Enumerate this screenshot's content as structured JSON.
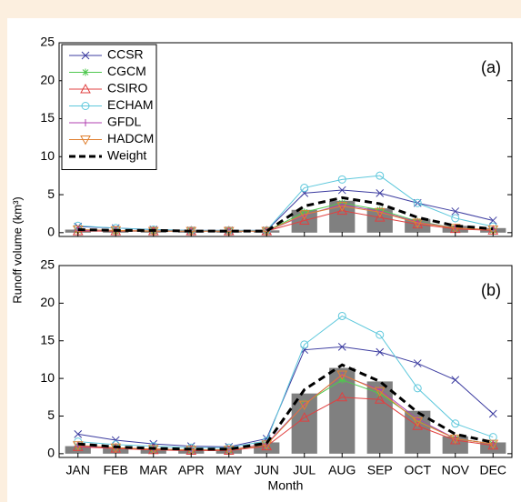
{
  "chart_data": [
    {
      "type": "bar-line",
      "panel_label": "(a)",
      "ylabel": "Runoff volume (km³)",
      "ylim": [
        -0.5,
        25
      ],
      "yticks": [
        0,
        5,
        10,
        15,
        20,
        25
      ],
      "bar_color": "#808080",
      "bars": [
        0.4,
        0.3,
        0.3,
        0.3,
        0.3,
        0.3,
        3.0,
        4.2,
        3.2,
        1.8,
        0.9,
        0.6
      ],
      "legend": "upper left",
      "series": [
        {
          "name": "CCSR",
          "color": "#3c3ca0",
          "marker": "x",
          "linestyle": "solid",
          "values": [
            0.8,
            0.6,
            0.4,
            0.3,
            0.3,
            0.3,
            5.2,
            5.6,
            5.2,
            3.9,
            2.8,
            1.6
          ]
        },
        {
          "name": "CGCM",
          "color": "#4fc84f",
          "marker": "*",
          "linestyle": "solid",
          "values": [
            0.3,
            0.2,
            0.2,
            0.2,
            0.2,
            0.2,
            2.7,
            3.9,
            3.0,
            1.5,
            0.6,
            0.3
          ]
        },
        {
          "name": "CSIRO",
          "color": "#e04040",
          "marker": "^",
          "linestyle": "solid",
          "values": [
            0.2,
            0.2,
            0.2,
            0.2,
            0.2,
            0.2,
            1.6,
            2.9,
            2.0,
            1.1,
            0.5,
            0.3
          ]
        },
        {
          "name": "ECHAM",
          "color": "#5ec8dc",
          "marker": "o",
          "linestyle": "solid",
          "values": [
            0.9,
            0.6,
            0.4,
            0.3,
            0.3,
            0.3,
            5.9,
            7.0,
            7.5,
            3.9,
            1.9,
            0.8
          ]
        },
        {
          "name": "GFDL",
          "color": "#b040b0",
          "marker": "+",
          "linestyle": "solid",
          "values": [
            0.3,
            0.3,
            0.2,
            0.2,
            0.2,
            0.2,
            2.3,
            3.7,
            2.8,
            1.4,
            0.6,
            0.4
          ]
        },
        {
          "name": "HADCM",
          "color": "#e08030",
          "marker": "v",
          "linestyle": "solid",
          "values": [
            0.4,
            0.3,
            0.2,
            0.2,
            0.2,
            0.2,
            2.4,
            3.5,
            2.7,
            1.3,
            0.6,
            0.4
          ]
        },
        {
          "name": "Weight",
          "color": "#000000",
          "marker": "none",
          "linestyle": "dashed",
          "values": [
            0.4,
            0.3,
            0.3,
            0.2,
            0.2,
            0.2,
            3.5,
            4.6,
            3.8,
            2.0,
            0.9,
            0.5
          ]
        }
      ]
    },
    {
      "type": "bar-line",
      "panel_label": "(b)",
      "xlabel": "Month",
      "categories": [
        "JAN",
        "FEB",
        "MAR",
        "APR",
        "MAY",
        "JUN",
        "JUL",
        "AUG",
        "SEP",
        "OCT",
        "NOV",
        "DEC"
      ],
      "ylim": [
        -0.5,
        25
      ],
      "yticks": [
        0,
        5,
        10,
        15,
        20,
        25
      ],
      "bar_color": "#808080",
      "bars": [
        1.0,
        0.8,
        0.7,
        0.6,
        0.6,
        1.5,
        8.0,
        11.4,
        9.6,
        5.7,
        2.3,
        1.5
      ],
      "legend": false,
      "series": [
        {
          "color": "#3c3ca0",
          "marker": "x",
          "linestyle": "solid",
          "values": [
            2.6,
            1.8,
            1.3,
            1.0,
            0.9,
            2.0,
            13.8,
            14.2,
            13.5,
            12.0,
            9.8,
            5.3
          ]
        },
        {
          "color": "#4fc84f",
          "marker": "*",
          "linestyle": "solid",
          "values": [
            1.0,
            0.8,
            0.6,
            0.5,
            0.5,
            1.2,
            6.7,
            9.8,
            8.0,
            4.5,
            2.0,
            1.3
          ]
        },
        {
          "color": "#e04040",
          "marker": "^",
          "linestyle": "solid",
          "values": [
            0.9,
            0.7,
            0.5,
            0.4,
            0.4,
            1.0,
            4.8,
            7.5,
            7.2,
            3.7,
            1.8,
            1.1
          ]
        },
        {
          "color": "#5ec8dc",
          "marker": "o",
          "linestyle": "solid",
          "values": [
            1.6,
            1.2,
            1.0,
            0.8,
            0.8,
            1.7,
            14.5,
            18.3,
            15.8,
            8.7,
            4.0,
            2.2
          ]
        },
        {
          "color": "#b040b0",
          "marker": "+",
          "linestyle": "solid",
          "values": [
            1.0,
            0.8,
            0.6,
            0.5,
            0.5,
            1.3,
            6.6,
            10.4,
            8.5,
            4.6,
            2.0,
            1.3
          ]
        },
        {
          "color": "#e08030",
          "marker": "v",
          "linestyle": "solid",
          "values": [
            1.1,
            0.8,
            0.6,
            0.5,
            0.5,
            1.2,
            6.5,
            10.5,
            8.3,
            4.3,
            2.0,
            1.3
          ]
        },
        {
          "color": "#000000",
          "marker": "none",
          "linestyle": "dashed",
          "values": [
            1.3,
            0.9,
            0.7,
            0.6,
            0.6,
            1.4,
            8.5,
            11.8,
            9.6,
            5.5,
            2.6,
            1.5
          ]
        }
      ]
    }
  ]
}
